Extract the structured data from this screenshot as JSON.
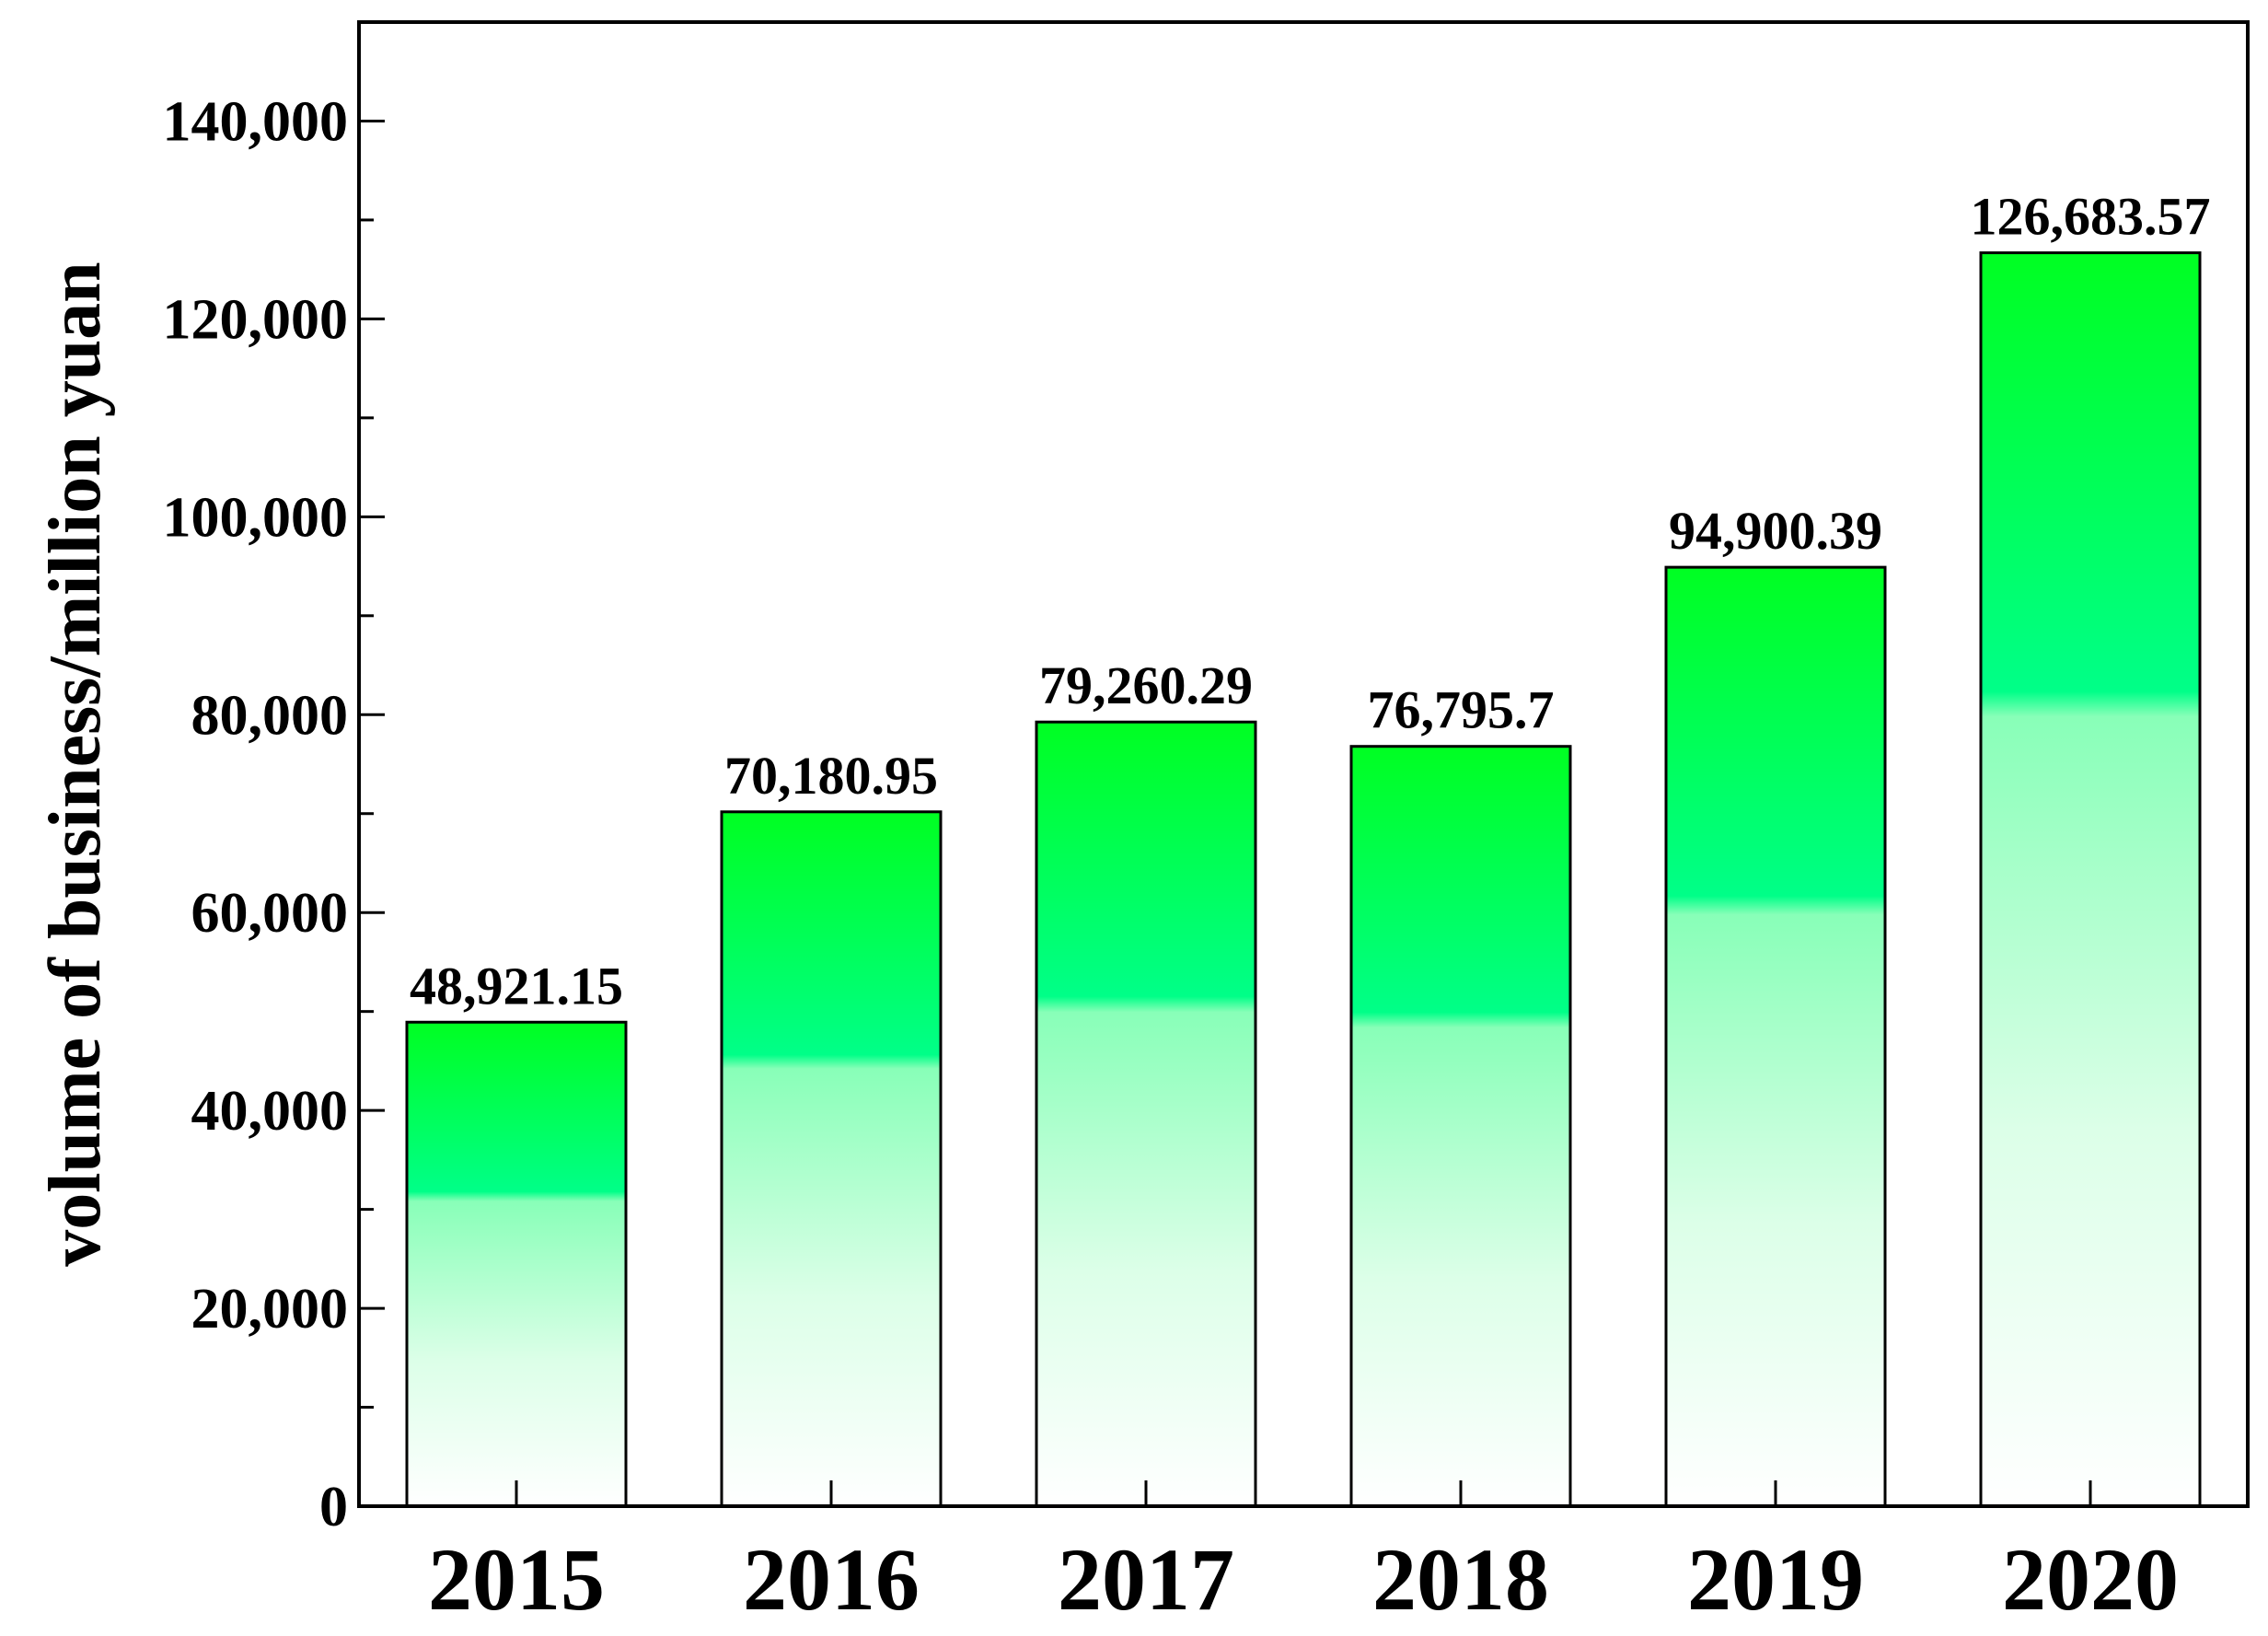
{
  "chart_data": {
    "type": "bar",
    "categories": [
      "2015",
      "2016",
      "2017",
      "2018",
      "2019",
      "2020"
    ],
    "values": [
      48921.15,
      70180.95,
      79260.29,
      76795.7,
      94900.39,
      126683.57
    ],
    "data_labels": [
      "48,921.15",
      "70,180.95",
      "79,260.29",
      "76,795.7",
      "94,900.39",
      "126,683.57"
    ],
    "title": "",
    "xlabel": "",
    "ylabel": "volume of business/million yuan",
    "ylim": [
      0,
      150000
    ],
    "yticks": [
      0,
      20000,
      40000,
      60000,
      80000,
      100000,
      120000,
      140000
    ],
    "ytick_labels": [
      "0",
      "20,000",
      "40,000",
      "60,000",
      "80,000",
      "100,000",
      "120,000",
      "140,000"
    ],
    "grid": false,
    "legend": "none",
    "colors": {
      "bar_top": "#00ff22",
      "bar_mid": "#00ff88",
      "bar_bottom": "#ffffff",
      "bar_outline": "#000000"
    }
  }
}
